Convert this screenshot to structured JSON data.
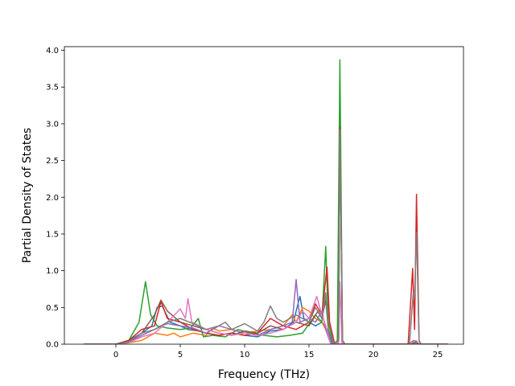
{
  "chart_data": {
    "type": "line",
    "title": "",
    "xlabel": "Frequency (THz)",
    "ylabel": "Partial Density of States",
    "xlim": [
      -4,
      27
    ],
    "ylim": [
      0,
      4.05
    ],
    "xticks": [
      0,
      5,
      10,
      15,
      20,
      25
    ],
    "yticks": [
      0.0,
      0.5,
      1.0,
      1.5,
      2.0,
      2.5,
      3.0,
      3.5,
      4.0
    ],
    "xtick_labels": [
      "0",
      "5",
      "10",
      "15",
      "20",
      "25"
    ],
    "ytick_labels": [
      "0.0",
      "0.5",
      "1.0",
      "1.5",
      "2.0",
      "2.5",
      "3.0",
      "3.5",
      "4.0"
    ],
    "grid": false,
    "legend": null,
    "series": [
      {
        "color": "#1f77b4",
        "points": [
          [
            -2.5,
            0
          ],
          [
            0,
            0
          ],
          [
            1,
            0.05
          ],
          [
            2,
            0.15
          ],
          [
            2.8,
            0.25
          ],
          [
            3.2,
            0.5
          ],
          [
            3.6,
            0.52
          ],
          [
            4.2,
            0.3
          ],
          [
            5,
            0.25
          ],
          [
            5.6,
            0.2
          ],
          [
            6.5,
            0.18
          ],
          [
            7,
            0.15
          ],
          [
            8,
            0.12
          ],
          [
            9,
            0.15
          ],
          [
            10,
            0.12
          ],
          [
            11,
            0.1
          ],
          [
            12,
            0.18
          ],
          [
            13,
            0.2
          ],
          [
            13.8,
            0.3
          ],
          [
            14,
            0.45
          ],
          [
            14.3,
            0.65
          ],
          [
            14.6,
            0.35
          ],
          [
            15,
            0.3
          ],
          [
            15.5,
            0.25
          ],
          [
            16,
            0.3
          ],
          [
            16.4,
            0.2
          ],
          [
            16.8,
            0
          ],
          [
            22.6,
            0
          ],
          [
            23,
            0.03
          ],
          [
            23.3,
            0.05
          ],
          [
            23.6,
            0
          ],
          [
            25.8,
            0
          ]
        ]
      },
      {
        "color": "#ff7f0e",
        "points": [
          [
            -2.5,
            0
          ],
          [
            0,
            0
          ],
          [
            1,
            0.02
          ],
          [
            2,
            0.05
          ],
          [
            3,
            0.15
          ],
          [
            4,
            0.12
          ],
          [
            4.5,
            0.15
          ],
          [
            5,
            0.1
          ],
          [
            6,
            0.15
          ],
          [
            7,
            0.12
          ],
          [
            7.5,
            0.22
          ],
          [
            8,
            0.18
          ],
          [
            9,
            0.2
          ],
          [
            10,
            0.15
          ],
          [
            11,
            0.18
          ],
          [
            12,
            0.2
          ],
          [
            13,
            0.25
          ],
          [
            13.7,
            0.4
          ],
          [
            14,
            0.3
          ],
          [
            14.5,
            0.5
          ],
          [
            15,
            0.45
          ],
          [
            15.5,
            0.35
          ],
          [
            16,
            0.3
          ],
          [
            16.3,
            0.2
          ],
          [
            16.7,
            0
          ],
          [
            22.6,
            0
          ],
          [
            23,
            0.02
          ],
          [
            23.6,
            0
          ],
          [
            25.8,
            0
          ]
        ]
      },
      {
        "color": "#2ca02c",
        "points": [
          [
            -2.5,
            0
          ],
          [
            0,
            0
          ],
          [
            1,
            0.05
          ],
          [
            1.8,
            0.3
          ],
          [
            2.3,
            0.85
          ],
          [
            2.7,
            0.4
          ],
          [
            3.2,
            0.25
          ],
          [
            4,
            0.22
          ],
          [
            5,
            0.2
          ],
          [
            5.8,
            0.22
          ],
          [
            6.4,
            0.35
          ],
          [
            6.8,
            0.1
          ],
          [
            7.5,
            0.12
          ],
          [
            8.5,
            0.1
          ],
          [
            9.5,
            0.2
          ],
          [
            10.5,
            0.15
          ],
          [
            11.5,
            0.12
          ],
          [
            12.5,
            0.1
          ],
          [
            13.5,
            0.12
          ],
          [
            14.5,
            0.15
          ],
          [
            15.5,
            0.4
          ],
          [
            16,
            0.3
          ],
          [
            16.3,
            1.33
          ],
          [
            16.5,
            0.3
          ],
          [
            16.9,
            0
          ],
          [
            17.2,
            0.05
          ],
          [
            17.4,
            3.87
          ],
          [
            17.6,
            0.05
          ],
          [
            17.8,
            0
          ],
          [
            22.8,
            0
          ],
          [
            23.3,
            0.02
          ],
          [
            23.6,
            0
          ],
          [
            25.8,
            0
          ]
        ]
      },
      {
        "color": "#d62728",
        "points": [
          [
            -2.5,
            0
          ],
          [
            0,
            0
          ],
          [
            1,
            0.05
          ],
          [
            2,
            0.2
          ],
          [
            3,
            0.25
          ],
          [
            3.5,
            0.58
          ],
          [
            4,
            0.35
          ],
          [
            5,
            0.3
          ],
          [
            6,
            0.2
          ],
          [
            7,
            0.15
          ],
          [
            8,
            0.12
          ],
          [
            9,
            0.15
          ],
          [
            10,
            0.12
          ],
          [
            11,
            0.15
          ],
          [
            12,
            0.35
          ],
          [
            13,
            0.25
          ],
          [
            14,
            0.2
          ],
          [
            15,
            0.3
          ],
          [
            15.5,
            0.55
          ],
          [
            16,
            0.4
          ],
          [
            16.4,
            1.05
          ],
          [
            16.6,
            0.3
          ],
          [
            17,
            0
          ],
          [
            17.3,
            0.05
          ],
          [
            17.4,
            2.95
          ],
          [
            17.6,
            0.05
          ],
          [
            17.8,
            0
          ],
          [
            22.7,
            0
          ],
          [
            23.05,
            1.03
          ],
          [
            23.2,
            0.2
          ],
          [
            23.35,
            2.04
          ],
          [
            23.55,
            0.05
          ],
          [
            23.7,
            0
          ],
          [
            25.8,
            0
          ]
        ]
      },
      {
        "color": "#9467bd",
        "points": [
          [
            -2.5,
            0
          ],
          [
            0,
            0
          ],
          [
            1,
            0.03
          ],
          [
            2,
            0.12
          ],
          [
            3,
            0.2
          ],
          [
            4,
            0.28
          ],
          [
            5,
            0.25
          ],
          [
            6,
            0.22
          ],
          [
            7,
            0.15
          ],
          [
            8,
            0.25
          ],
          [
            9,
            0.2
          ],
          [
            10,
            0.15
          ],
          [
            11,
            0.12
          ],
          [
            12,
            0.2
          ],
          [
            13,
            0.25
          ],
          [
            13.7,
            0.3
          ],
          [
            14,
            0.88
          ],
          [
            14.3,
            0.3
          ],
          [
            15,
            0.35
          ],
          [
            15.5,
            0.3
          ],
          [
            16,
            0.45
          ],
          [
            16.3,
            0.2
          ],
          [
            16.7,
            0
          ],
          [
            22.8,
            0
          ],
          [
            23.1,
            0.05
          ],
          [
            23.3,
            0.03
          ],
          [
            23.6,
            0
          ],
          [
            25.8,
            0
          ]
        ]
      },
      {
        "color": "#8c564b",
        "points": [
          [
            -2.5,
            0
          ],
          [
            0,
            0
          ],
          [
            1,
            0.03
          ],
          [
            2,
            0.15
          ],
          [
            3,
            0.4
          ],
          [
            3.5,
            0.6
          ],
          [
            4,
            0.45
          ],
          [
            5,
            0.3
          ],
          [
            6,
            0.25
          ],
          [
            7,
            0.2
          ],
          [
            8,
            0.15
          ],
          [
            9,
            0.12
          ],
          [
            10,
            0.18
          ],
          [
            11,
            0.15
          ],
          [
            12,
            0.25
          ],
          [
            13,
            0.2
          ],
          [
            14,
            0.3
          ],
          [
            15,
            0.25
          ],
          [
            15.7,
            0.45
          ],
          [
            16,
            0.35
          ],
          [
            16.3,
            0.6
          ],
          [
            16.5,
            0.2
          ],
          [
            16.9,
            0
          ],
          [
            17.3,
            0.05
          ],
          [
            17.4,
            2.9
          ],
          [
            17.6,
            0.05
          ],
          [
            17.8,
            0
          ],
          [
            22.8,
            0
          ],
          [
            23.3,
            0.04
          ],
          [
            23.6,
            0
          ],
          [
            25.8,
            0
          ]
        ]
      },
      {
        "color": "#e377c2",
        "points": [
          [
            -2.5,
            0
          ],
          [
            0,
            0
          ],
          [
            1,
            0.02
          ],
          [
            2,
            0.1
          ],
          [
            3,
            0.15
          ],
          [
            4,
            0.3
          ],
          [
            5,
            0.48
          ],
          [
            5.4,
            0.35
          ],
          [
            5.6,
            0.62
          ],
          [
            5.9,
            0.3
          ],
          [
            6.5,
            0.25
          ],
          [
            7,
            0.2
          ],
          [
            8,
            0.15
          ],
          [
            9,
            0.12
          ],
          [
            10,
            0.15
          ],
          [
            11,
            0.12
          ],
          [
            12,
            0.15
          ],
          [
            13,
            0.2
          ],
          [
            14,
            0.3
          ],
          [
            14.5,
            0.45
          ],
          [
            15,
            0.35
          ],
          [
            15.6,
            0.65
          ],
          [
            16,
            0.4
          ],
          [
            16.3,
            0.25
          ],
          [
            16.7,
            0
          ],
          [
            17.3,
            0.02
          ],
          [
            17.4,
            0.85
          ],
          [
            17.55,
            0.02
          ],
          [
            17.8,
            0
          ],
          [
            22.8,
            0
          ],
          [
            23.3,
            0.05
          ],
          [
            23.6,
            0
          ],
          [
            25.8,
            0
          ]
        ]
      },
      {
        "color": "#7f7f7f",
        "points": [
          [
            -2.5,
            0
          ],
          [
            0,
            0
          ],
          [
            1,
            0.03
          ],
          [
            2,
            0.15
          ],
          [
            3,
            0.2
          ],
          [
            4,
            0.3
          ],
          [
            5,
            0.35
          ],
          [
            6,
            0.28
          ],
          [
            7,
            0.2
          ],
          [
            8,
            0.25
          ],
          [
            8.5,
            0.3
          ],
          [
            9,
            0.2
          ],
          [
            10,
            0.28
          ],
          [
            11,
            0.18
          ],
          [
            11.5,
            0.3
          ],
          [
            12,
            0.52
          ],
          [
            12.5,
            0.35
          ],
          [
            13,
            0.3
          ],
          [
            14,
            0.4
          ],
          [
            14.5,
            0.35
          ],
          [
            15,
            0.3
          ],
          [
            15.5,
            0.5
          ],
          [
            16,
            0.35
          ],
          [
            16.3,
            0.7
          ],
          [
            16.5,
            0.2
          ],
          [
            16.9,
            0
          ],
          [
            17.3,
            0.05
          ],
          [
            17.4,
            2.92
          ],
          [
            17.6,
            0.05
          ],
          [
            17.8,
            0
          ],
          [
            22.8,
            0
          ],
          [
            23.1,
            0.7
          ],
          [
            23.2,
            0.65
          ],
          [
            23.35,
            1.52
          ],
          [
            23.55,
            0.05
          ],
          [
            23.7,
            0
          ],
          [
            25.8,
            0
          ]
        ]
      }
    ]
  }
}
